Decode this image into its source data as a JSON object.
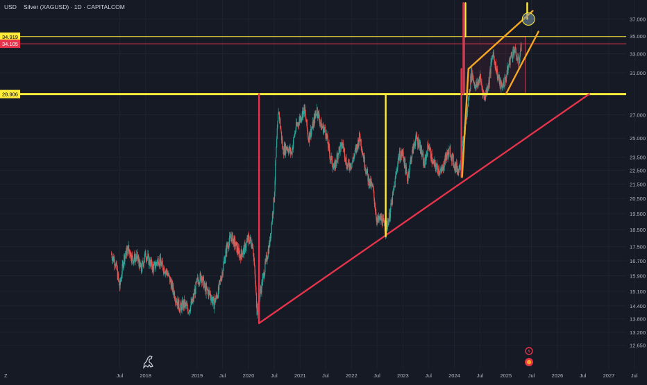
{
  "header": {
    "currency": "USD",
    "symbol_title": "Silver (XAGUSD) · 1D · CAPITALCOM"
  },
  "footer": {
    "tz_label": "Z"
  },
  "colors": {
    "background": "#161a25",
    "up": "#26a69a",
    "down": "#ef5350",
    "yellow": "#ffeb3b",
    "orange": "#f5a623",
    "red": "#e5334b"
  },
  "chart_data": {
    "type": "candlestick",
    "title": "Silver (XAGUSD) · 1D · CAPITALCOM",
    "y_axis": {
      "scale": "log",
      "range": [
        12.3,
        38.5
      ],
      "ticks": [
        "37.000",
        "35.000",
        "33.000",
        "31.000",
        "27.000",
        "25.000",
        "23.500",
        "22.500",
        "21.500",
        "20.500",
        "19.500",
        "18.500",
        "17.500",
        "16.700",
        "15.900",
        "15.100",
        "14.400",
        "13.800",
        "13.200",
        "12.650"
      ]
    },
    "x_axis": {
      "range": [
        "2017-05-01",
        "2027-08-01"
      ],
      "ticks": [
        {
          "label": "Jul",
          "date": "2017-07-01"
        },
        {
          "label": "2018",
          "date": "2018-01-01"
        },
        {
          "label": "2019",
          "date": "2019-01-01"
        },
        {
          "label": "Jul",
          "date": "2019-07-01"
        },
        {
          "label": "2020",
          "date": "2020-01-01"
        },
        {
          "label": "Jul",
          "date": "2020-07-01"
        },
        {
          "label": "2021",
          "date": "2021-01-01"
        },
        {
          "label": "Jul",
          "date": "2021-07-01"
        },
        {
          "label": "2022",
          "date": "2022-01-01"
        },
        {
          "label": "Jul",
          "date": "2022-07-01"
        },
        {
          "label": "2023",
          "date": "2023-01-01"
        },
        {
          "label": "Jul",
          "date": "2023-07-01"
        },
        {
          "label": "2024",
          "date": "2024-01-01"
        },
        {
          "label": "Jul",
          "date": "2024-07-01"
        },
        {
          "label": "2025",
          "date": "2025-01-01"
        },
        {
          "label": "Jul",
          "date": "2025-07-01"
        },
        {
          "label": "2026",
          "date": "2026-01-01"
        },
        {
          "label": "Jul",
          "date": "2026-07-01"
        },
        {
          "label": "2027",
          "date": "2027-01-01"
        },
        {
          "label": "Jul",
          "date": "2027-07-01"
        }
      ]
    },
    "price_path": [
      [
        "2017-05-01",
        17.1
      ],
      [
        "2017-06-01",
        16.6
      ],
      [
        "2017-07-01",
        15.3
      ],
      [
        "2017-08-01",
        16.9
      ],
      [
        "2017-09-01",
        17.4
      ],
      [
        "2017-10-01",
        16.8
      ],
      [
        "2017-11-01",
        16.9
      ],
      [
        "2017-12-01",
        16.2
      ],
      [
        "2018-01-01",
        17.1
      ],
      [
        "2018-02-01",
        16.6
      ],
      [
        "2018-03-01",
        16.3
      ],
      [
        "2018-04-01",
        16.8
      ],
      [
        "2018-05-01",
        16.4
      ],
      [
        "2018-06-01",
        16.1
      ],
      [
        "2018-07-01",
        15.5
      ],
      [
        "2018-08-01",
        14.8
      ],
      [
        "2018-09-01",
        14.3
      ],
      [
        "2018-10-01",
        14.5
      ],
      [
        "2018-11-01",
        14.2
      ],
      [
        "2018-12-01",
        14.6
      ],
      [
        "2019-01-01",
        15.6
      ],
      [
        "2019-02-01",
        15.9
      ],
      [
        "2019-03-01",
        15.2
      ],
      [
        "2019-04-01",
        15.0
      ],
      [
        "2019-05-01",
        14.5
      ],
      [
        "2019-06-01",
        15.1
      ],
      [
        "2019-07-01",
        16.2
      ],
      [
        "2019-08-01",
        17.5
      ],
      [
        "2019-09-01",
        18.1
      ],
      [
        "2019-10-01",
        17.6
      ],
      [
        "2019-11-01",
        17.0
      ],
      [
        "2019-12-01",
        17.3
      ],
      [
        "2020-01-01",
        18.0
      ],
      [
        "2020-02-01",
        17.6
      ],
      [
        "2020-03-01",
        14.2
      ],
      [
        "2020-04-01",
        15.3
      ],
      [
        "2020-05-01",
        16.5
      ],
      [
        "2020-06-01",
        17.8
      ],
      [
        "2020-07-01",
        20.5
      ],
      [
        "2020-08-01",
        27.5
      ],
      [
        "2020-09-01",
        24.0
      ],
      [
        "2020-10-01",
        24.3
      ],
      [
        "2020-11-01",
        23.8
      ],
      [
        "2020-12-01",
        25.8
      ],
      [
        "2021-01-01",
        26.7
      ],
      [
        "2021-02-01",
        27.5
      ],
      [
        "2021-03-01",
        25.0
      ],
      [
        "2021-04-01",
        26.0
      ],
      [
        "2021-05-01",
        27.5
      ],
      [
        "2021-06-01",
        26.0
      ],
      [
        "2021-07-01",
        25.6
      ],
      [
        "2021-08-01",
        23.6
      ],
      [
        "2021-09-01",
        22.6
      ],
      [
        "2021-10-01",
        24.0
      ],
      [
        "2021-11-01",
        24.5
      ],
      [
        "2021-12-01",
        22.8
      ],
      [
        "2022-01-01",
        23.0
      ],
      [
        "2022-02-01",
        24.0
      ],
      [
        "2022-03-01",
        25.2
      ],
      [
        "2022-04-01",
        23.2
      ],
      [
        "2022-05-01",
        21.8
      ],
      [
        "2022-06-01",
        21.2
      ],
      [
        "2022-07-01",
        19.0
      ],
      [
        "2022-08-01",
        19.2
      ],
      [
        "2022-09-01",
        18.5
      ],
      [
        "2022-10-01",
        19.5
      ],
      [
        "2022-11-01",
        21.3
      ],
      [
        "2022-12-01",
        23.5
      ],
      [
        "2023-01-01",
        23.8
      ],
      [
        "2023-02-01",
        21.8
      ],
      [
        "2023-03-01",
        23.5
      ],
      [
        "2023-04-01",
        25.0
      ],
      [
        "2023-05-01",
        24.5
      ],
      [
        "2023-06-01",
        22.8
      ],
      [
        "2023-07-01",
        24.5
      ],
      [
        "2023-08-01",
        23.0
      ],
      [
        "2023-09-01",
        22.7
      ],
      [
        "2023-10-01",
        22.3
      ],
      [
        "2023-11-01",
        23.5
      ],
      [
        "2023-12-01",
        24.0
      ],
      [
        "2024-01-01",
        22.9
      ],
      [
        "2024-02-01",
        22.5
      ],
      [
        "2024-03-01",
        24.5
      ],
      [
        "2024-04-01",
        27.2
      ],
      [
        "2024-05-01",
        31.0
      ],
      [
        "2024-06-01",
        29.5
      ],
      [
        "2024-07-01",
        30.5
      ],
      [
        "2024-08-01",
        28.5
      ],
      [
        "2024-09-01",
        30.0
      ],
      [
        "2024-10-01",
        33.2
      ],
      [
        "2024-11-01",
        30.8
      ],
      [
        "2024-12-01",
        29.5
      ],
      [
        "2025-01-01",
        30.5
      ],
      [
        "2025-02-01",
        32.5
      ],
      [
        "2025-03-01",
        33.5
      ],
      [
        "2025-04-01",
        32.0
      ],
      [
        "2025-04-20",
        33.9
      ]
    ],
    "horizontal_lines": [
      {
        "value": 34.919,
        "label": "34.919",
        "color": "#ffeb3b"
      },
      {
        "value": 34.105,
        "label": "34.105",
        "color": "#e5334b"
      },
      {
        "value": 28.906,
        "label": "28.906",
        "color": "#ffeb3b"
      }
    ],
    "trendlines": [
      {
        "color": "#e5334b",
        "from": [
          "2020-03-16",
          13.6
        ],
        "to": [
          "2026-08-15",
          28.906
        ]
      },
      {
        "color": "#e5334b",
        "from": [
          "2020-03-16",
          13.6
        ],
        "to": [
          "2020-03-16",
          28.906
        ]
      },
      {
        "color": "#ffeb3b",
        "from": [
          "2022-09-01",
          18.1
        ],
        "to": [
          "2022-09-01",
          28.906
        ]
      },
      {
        "color": "#e5334b",
        "from": [
          "2024-02-20",
          22.0
        ],
        "to": [
          "2024-02-20",
          31.4
        ]
      },
      {
        "color": "#e5334b",
        "from": [
          "2024-03-05",
          28.906
        ],
        "to": [
          "2024-03-05",
          39.0
        ]
      },
      {
        "color": "#ffeb3b",
        "from": [
          "2024-03-20",
          34.919
        ],
        "to": [
          "2024-03-20",
          39.0
        ]
      },
      {
        "color": "#ffeb3b",
        "from": [
          "2025-06-01",
          37.0
        ],
        "to": [
          "2025-06-01",
          39.0
        ]
      },
      {
        "color": "#f5a623",
        "from": [
          "2024-02-25",
          22.0
        ],
        "to": [
          "2024-04-10",
          31.4
        ]
      },
      {
        "color": "#f5a623",
        "from": [
          "2024-04-10",
          31.4
        ],
        "to": [
          "2025-07-10",
          38.0
        ]
      },
      {
        "color": "#f5a623",
        "from": [
          "2025-01-01",
          28.906
        ],
        "to": [
          "2025-08-20",
          35.5
        ]
      }
    ],
    "rectangle": {
      "from": [
        "2024-03-15",
        28.906
      ],
      "to": [
        "2025-05-20",
        34.919
      ],
      "color": "#e5334b"
    }
  }
}
